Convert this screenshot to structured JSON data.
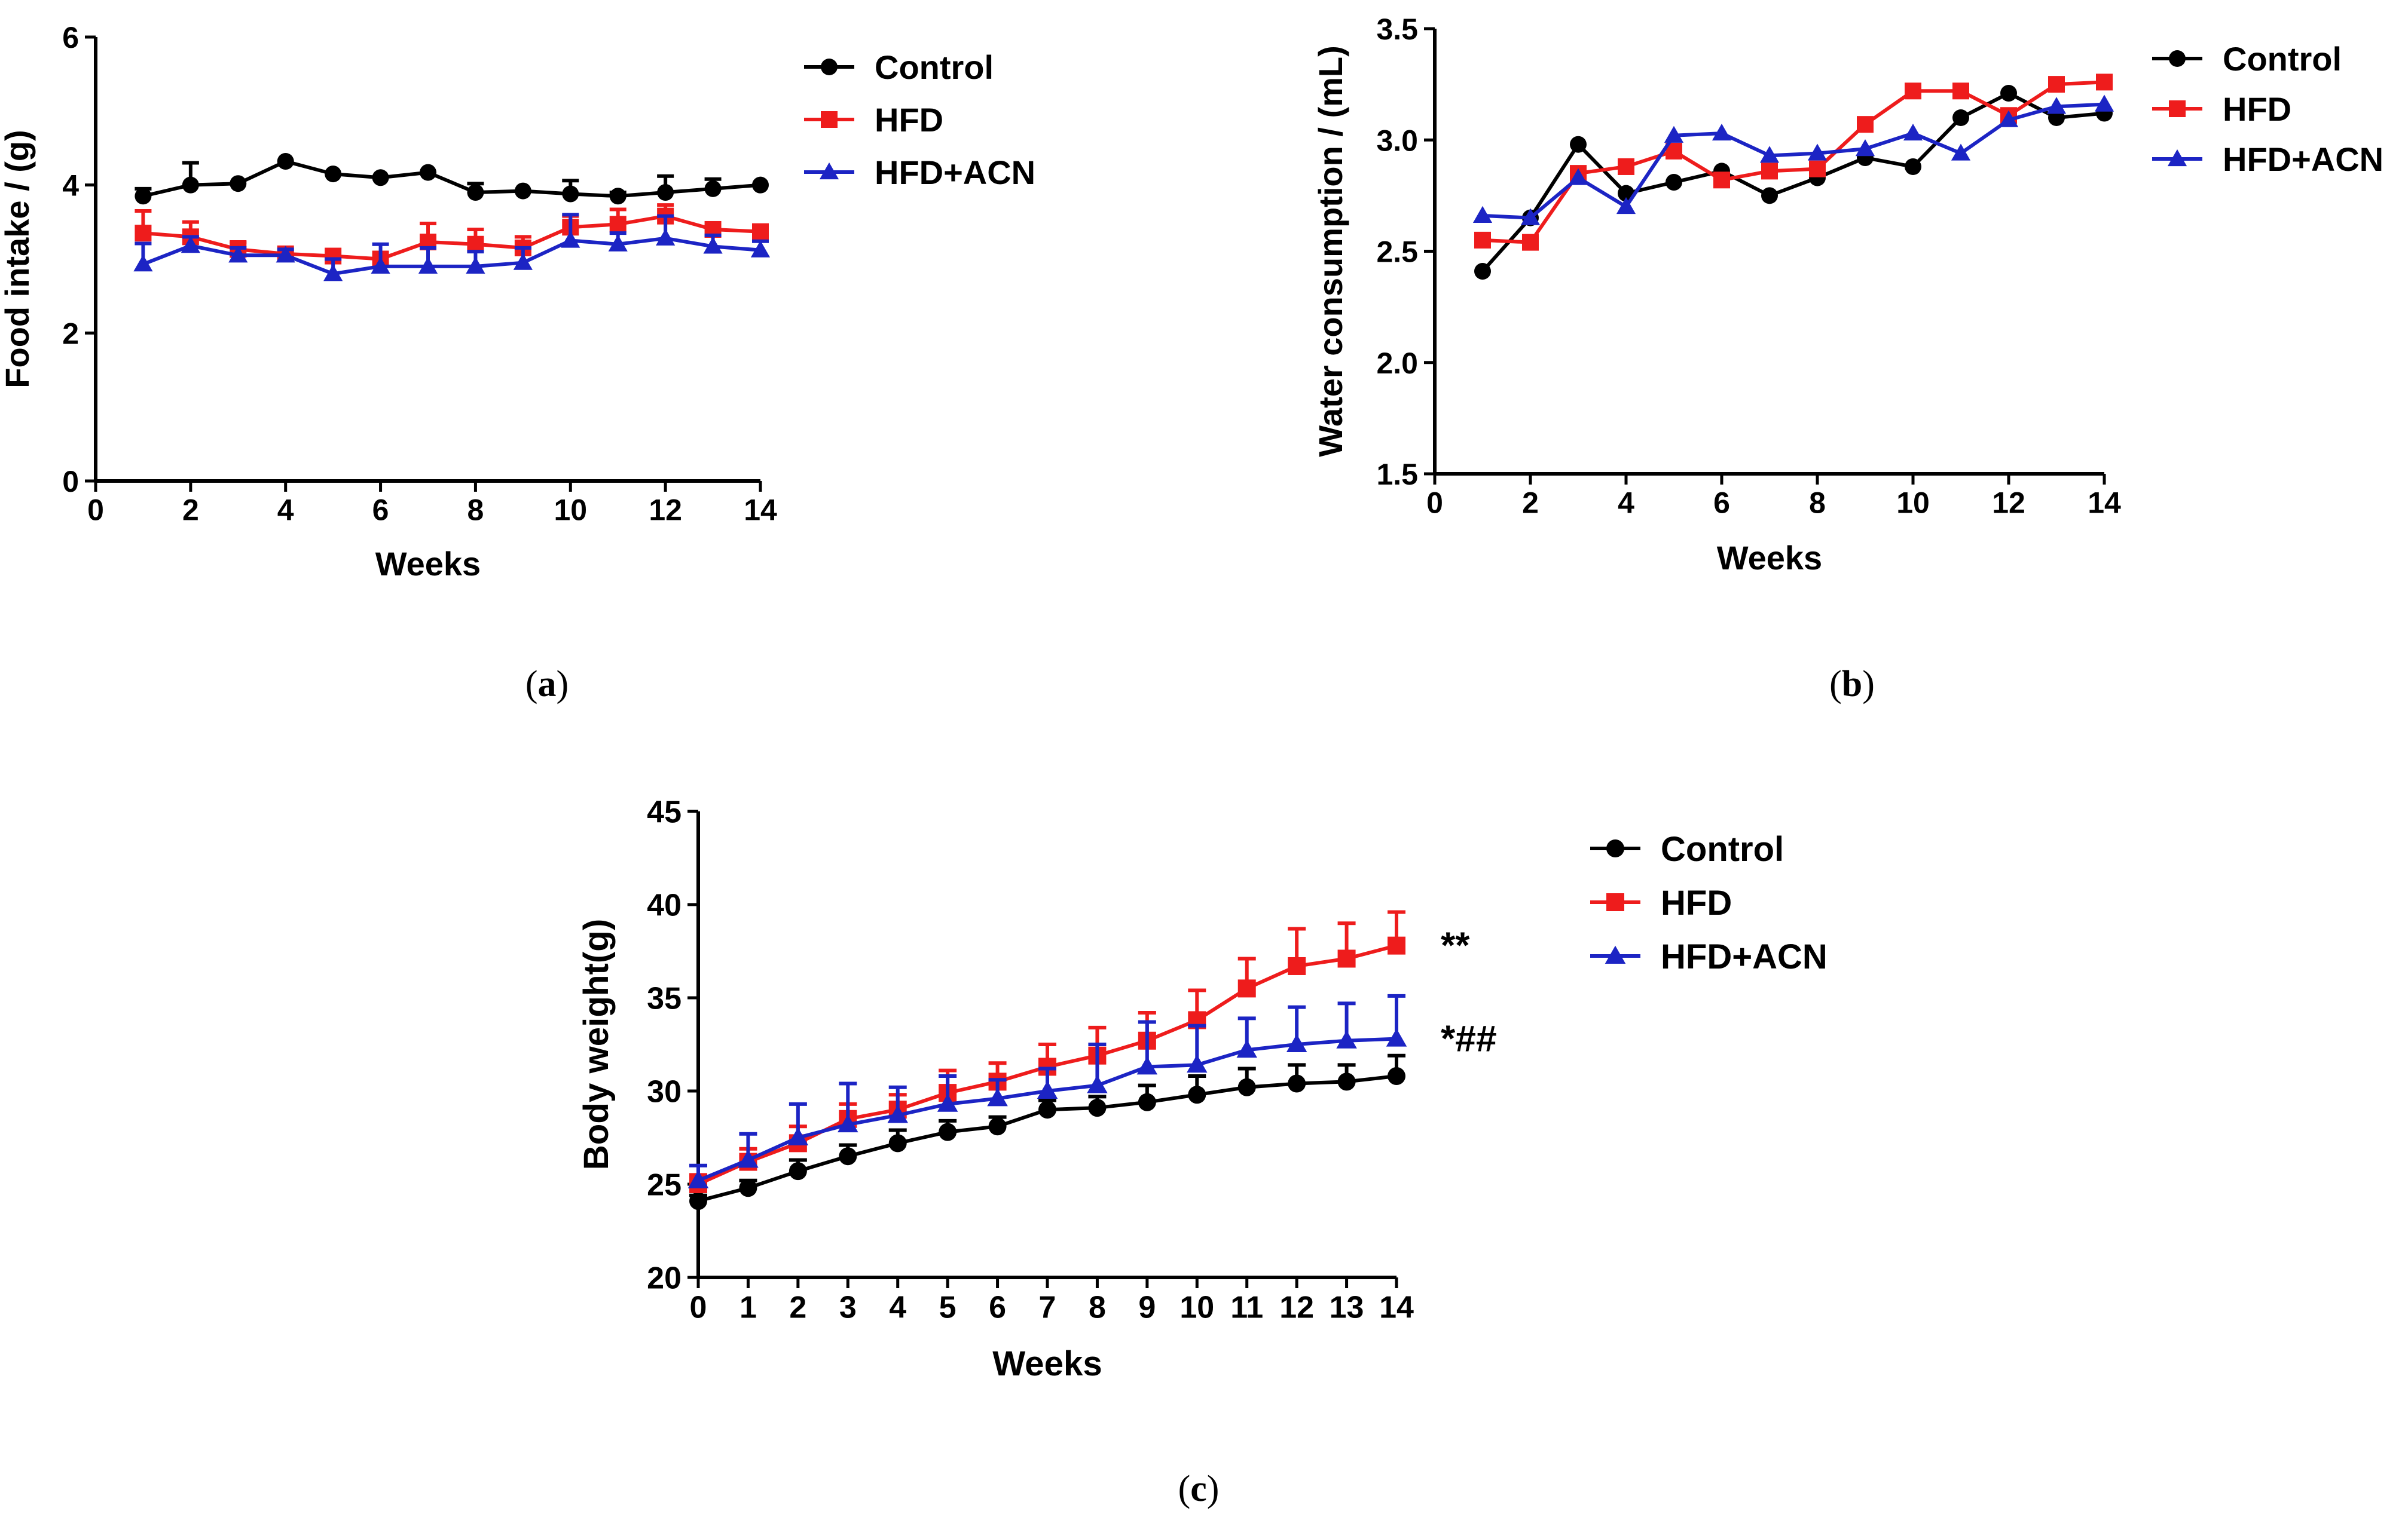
{
  "colors": {
    "control": "#000000",
    "hfd": "#ee1c1c",
    "hfd_acn": "#1c24c4",
    "background": "#ffffff"
  },
  "chart_data": [
    {
      "id": "a",
      "caption_letter": "a",
      "type": "line",
      "title": "",
      "xlabel": "Weeks",
      "ylabel": "Food intake / (g)",
      "xlim": [
        0,
        14
      ],
      "ylim": [
        0,
        6
      ],
      "xticks": [
        "0",
        "2",
        "4",
        "6",
        "8",
        "10",
        "12",
        "14"
      ],
      "xtick_values": [
        0,
        2,
        4,
        6,
        8,
        10,
        12,
        14
      ],
      "yticks": [
        "0",
        "2",
        "4",
        "6"
      ],
      "ytick_values": [
        0,
        2,
        4,
        6
      ],
      "grid": false,
      "legend_position": "top-right outside",
      "x": [
        1,
        2,
        3,
        4,
        5,
        6,
        7,
        8,
        9,
        10,
        11,
        12,
        13,
        14
      ],
      "series": [
        {
          "name": "Control",
          "color_key": "control",
          "marker": "circle",
          "values": [
            3.85,
            4.0,
            4.02,
            4.32,
            4.15,
            4.1,
            4.17,
            3.9,
            3.92,
            3.88,
            3.85,
            3.9,
            3.95,
            4.0
          ],
          "errors": [
            0.1,
            0.3,
            0.0,
            0.0,
            0.0,
            0.0,
            0.0,
            0.12,
            0.0,
            0.18,
            0.05,
            0.22,
            0.13,
            0.0
          ]
        },
        {
          "name": "HFD",
          "color_key": "hfd",
          "marker": "square",
          "values": [
            3.35,
            3.3,
            3.13,
            3.07,
            3.04,
            3.0,
            3.23,
            3.2,
            3.15,
            3.43,
            3.47,
            3.58,
            3.4,
            3.37
          ],
          "errors": [
            0.3,
            0.2,
            0.1,
            0.0,
            0.0,
            0.0,
            0.25,
            0.2,
            0.15,
            0.15,
            0.2,
            0.15,
            0.0,
            0.0
          ]
        },
        {
          "name": "HFD+ACN",
          "color_key": "hfd_acn",
          "marker": "triangle",
          "values": [
            2.93,
            3.18,
            3.05,
            3.05,
            2.8,
            2.9,
            2.9,
            2.9,
            2.95,
            3.25,
            3.2,
            3.28,
            3.17,
            3.12
          ],
          "errors": [
            0.28,
            0.12,
            0.1,
            0.08,
            0.2,
            0.3,
            0.25,
            0.2,
            0.2,
            0.35,
            0.15,
            0.3,
            0.15,
            0.12
          ]
        }
      ]
    },
    {
      "id": "b",
      "caption_letter": "b",
      "type": "line",
      "title": "",
      "xlabel": "Weeks",
      "ylabel": "Water consumption / (mL)",
      "xlim": [
        0,
        14
      ],
      "ylim": [
        1.5,
        3.5
      ],
      "xticks": [
        "0",
        "2",
        "4",
        "6",
        "8",
        "10",
        "12",
        "14"
      ],
      "xtick_values": [
        0,
        2,
        4,
        6,
        8,
        10,
        12,
        14
      ],
      "yticks": [
        "1.5",
        "2.0",
        "2.5",
        "3.0",
        "3.5"
      ],
      "ytick_values": [
        1.5,
        2.0,
        2.5,
        3.0,
        3.5
      ],
      "grid": false,
      "legend_position": "top-right outside",
      "x": [
        1,
        2,
        3,
        4,
        5,
        6,
        7,
        8,
        9,
        10,
        11,
        12,
        13,
        14
      ],
      "series": [
        {
          "name": "Control",
          "color_key": "control",
          "marker": "circle",
          "values": [
            2.41,
            2.65,
            2.98,
            2.76,
            2.81,
            2.86,
            2.75,
            2.83,
            2.92,
            2.88,
            3.1,
            3.21,
            3.1,
            3.12
          ],
          "errors": []
        },
        {
          "name": "HFD",
          "color_key": "hfd",
          "marker": "square",
          "values": [
            2.55,
            2.54,
            2.85,
            2.88,
            2.95,
            2.82,
            2.86,
            2.87,
            3.07,
            3.22,
            3.22,
            3.11,
            3.25,
            3.26
          ],
          "errors": []
        },
        {
          "name": "HFD+ACN",
          "color_key": "hfd_acn",
          "marker": "triangle",
          "values": [
            2.66,
            2.65,
            2.83,
            2.7,
            3.02,
            3.03,
            2.93,
            2.94,
            2.96,
            3.03,
            2.94,
            3.09,
            3.15,
            3.16
          ],
          "errors": []
        }
      ]
    },
    {
      "id": "c",
      "caption_letter": "c",
      "type": "line",
      "title": "",
      "xlabel": "Weeks",
      "ylabel": "Body weight(g)",
      "xlim": [
        0,
        14
      ],
      "ylim": [
        20,
        45
      ],
      "xticks": [
        "0",
        "1",
        "2",
        "3",
        "4",
        "5",
        "6",
        "7",
        "8",
        "9",
        "10",
        "11",
        "12",
        "13",
        "14"
      ],
      "xtick_values": [
        0,
        1,
        2,
        3,
        4,
        5,
        6,
        7,
        8,
        9,
        10,
        11,
        12,
        13,
        14
      ],
      "yticks": [
        "20",
        "25",
        "30",
        "35",
        "40",
        "45"
      ],
      "ytick_values": [
        20,
        25,
        30,
        35,
        40,
        45
      ],
      "grid": false,
      "legend_position": "top-right outside",
      "x": [
        0,
        1,
        2,
        3,
        4,
        5,
        6,
        7,
        8,
        9,
        10,
        11,
        12,
        13,
        14
      ],
      "annotations": [
        {
          "text": "**",
          "series": "HFD"
        },
        {
          "text": "*##",
          "series": "HFD+ACN"
        }
      ],
      "series": [
        {
          "name": "Control",
          "color_key": "control",
          "marker": "circle",
          "values": [
            24.1,
            24.8,
            25.7,
            26.5,
            27.2,
            27.8,
            28.1,
            29.0,
            29.1,
            29.4,
            29.8,
            30.2,
            30.4,
            30.5,
            30.8
          ],
          "errors": [
            0.3,
            0.4,
            0.6,
            0.6,
            0.7,
            0.6,
            0.5,
            0.5,
            0.6,
            0.9,
            1.0,
            1.0,
            1.0,
            0.9,
            1.1
          ]
        },
        {
          "name": "HFD",
          "color_key": "hfd",
          "marker": "square",
          "values": [
            25.0,
            26.2,
            27.2,
            28.5,
            29.0,
            29.9,
            30.5,
            31.3,
            31.9,
            32.7,
            33.8,
            35.5,
            36.7,
            37.1,
            37.8
          ],
          "errors": [
            0.5,
            0.7,
            0.9,
            0.8,
            0.8,
            1.2,
            1.0,
            1.2,
            1.5,
            1.5,
            1.6,
            1.6,
            2.0,
            1.9,
            1.8
          ]
        },
        {
          "name": "HFD+ACN",
          "color_key": "hfd_acn",
          "marker": "triangle",
          "values": [
            25.2,
            26.3,
            27.5,
            28.2,
            28.7,
            29.3,
            29.6,
            30.0,
            30.3,
            31.3,
            31.4,
            32.2,
            32.5,
            32.7,
            32.8
          ],
          "errors": [
            0.8,
            1.4,
            1.8,
            2.2,
            1.5,
            1.5,
            1.0,
            1.2,
            2.2,
            2.4,
            2.1,
            1.7,
            2.0,
            2.0,
            2.3
          ]
        }
      ]
    }
  ]
}
